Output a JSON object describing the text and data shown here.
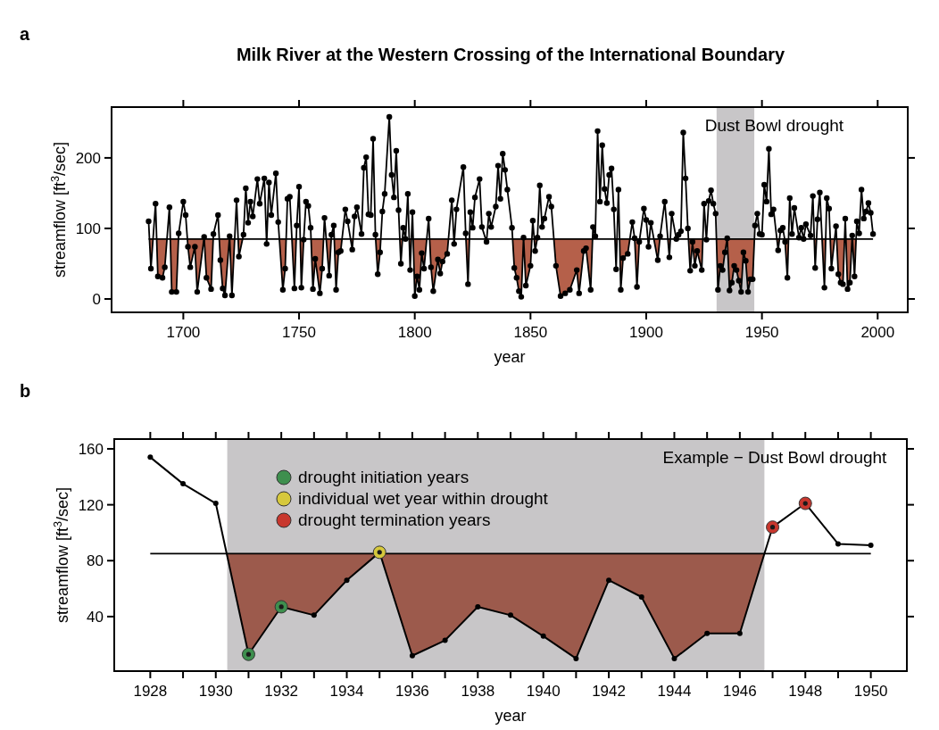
{
  "chart_data": [
    {
      "type": "line",
      "title": "Milk River at the Western Crossing of the International Boundary",
      "xlabel": "year",
      "ylabel": "streamflow [ft$^{3}$/sec]",
      "annotations": [
        "a"
      ],
      "xlim": [
        1669,
        2013
      ],
      "xticks": [
        1700,
        1750,
        1800,
        1850,
        1900,
        1950,
        2000
      ],
      "ylim": [
        -19,
        272
      ],
      "yticks": [
        0,
        100,
        200
      ],
      "grid": false,
      "legend": false,
      "ref_lines": [
        {
          "axis": "y",
          "value": 85,
          "color": "#000000"
        }
      ],
      "bands": [
        {
          "axis": "x",
          "from": 1930.4,
          "to": 1946.7,
          "label": "Dust Bowl drought",
          "color": "#c8c6c8"
        }
      ],
      "series": [
        {
          "type": "area",
          "marker": "circle",
          "color": "#b5604a",
          "x": [
            1685,
            1686,
            1688,
            1689,
            1691,
            1692,
            1694,
            1695,
            1697,
            1698,
            1700,
            1701,
            1702,
            1703,
            1705,
            1706,
            1709,
            1710,
            1712,
            1713,
            1715,
            1716,
            1717,
            1718,
            1720,
            1721,
            1723,
            1724,
            1726,
            1727,
            1728,
            1729,
            1730,
            1732,
            1733,
            1735,
            1736,
            1737,
            1738,
            1740,
            1741,
            1743,
            1744,
            1745,
            1746,
            1748,
            1749,
            1750,
            1751,
            1752,
            1753,
            1754,
            1755,
            1756,
            1757,
            1759,
            1760,
            1761,
            1763,
            1764,
            1765,
            1766,
            1767,
            1768,
            1770,
            1771,
            1773,
            1774,
            1775,
            1777,
            1778,
            1779,
            1780,
            1781,
            1782,
            1783,
            1784,
            1785,
            1786,
            1787,
            1789,
            1790,
            1791,
            1792,
            1793,
            1794,
            1795,
            1796,
            1797,
            1798,
            1799,
            1800,
            1801,
            1802,
            1803,
            1804,
            1806,
            1807,
            1808,
            1810,
            1811,
            1812,
            1814,
            1816,
            1817,
            1818,
            1821,
            1822,
            1823,
            1824,
            1825,
            1826,
            1828,
            1829,
            1831,
            1832,
            1833,
            1835,
            1836,
            1837,
            1838,
            1839,
            1840,
            1842,
            1843,
            1844,
            1845,
            1846,
            1847,
            1848,
            1850,
            1851,
            1852,
            1853,
            1854,
            1855,
            1856,
            1858,
            1859,
            1861,
            1863,
            1865,
            1867,
            1870,
            1871,
            1873,
            1874,
            1876,
            1877,
            1878,
            1879,
            1880,
            1881,
            1882,
            1883,
            1884,
            1885,
            1886,
            1887,
            1888,
            1889,
            1890,
            1892,
            1894,
            1895,
            1896,
            1897,
            1899,
            1900,
            1901,
            1902,
            1905,
            1906,
            1908,
            1910,
            1911,
            1913,
            1914,
            1915,
            1916,
            1917,
            1918,
            1919,
            1920,
            1921,
            1922,
            1924,
            1925,
            1926,
            1927,
            1928,
            1929,
            1930,
            1931,
            1932,
            1933,
            1934,
            1935,
            1936,
            1937,
            1938,
            1939,
            1940,
            1941,
            1942,
            1943,
            1944,
            1945,
            1946,
            1947,
            1948,
            1949,
            1950,
            1951,
            1952,
            1953,
            1954,
            1955,
            1957,
            1958,
            1959,
            1960,
            1961,
            1962,
            1963,
            1964,
            1966,
            1967,
            1968,
            1969,
            1971,
            1972,
            1973,
            1974,
            1975,
            1977,
            1978,
            1979,
            1980,
            1982,
            1983,
            1984,
            1985,
            1986,
            1987,
            1988,
            1989,
            1990,
            1991,
            1992,
            1993,
            1994,
            1995,
            1996,
            1997,
            1998
          ],
          "values": [
            110,
            43,
            135,
            32,
            30,
            45,
            130,
            10,
            10,
            93,
            138,
            119,
            74,
            45,
            74,
            10,
            88,
            30,
            14,
            92,
            119,
            55,
            15,
            5,
            89,
            5,
            140,
            60,
            91,
            157,
            108,
            138,
            117,
            170,
            135,
            171,
            78,
            165,
            119,
            178,
            109,
            13,
            43,
            142,
            145,
            15,
            104,
            159,
            16,
            84,
            138,
            132,
            101,
            14,
            57,
            8,
            43,
            115,
            33,
            91,
            104,
            13,
            66,
            68,
            127,
            110,
            70,
            117,
            130,
            92,
            186,
            201,
            120,
            119,
            227,
            91,
            35,
            66,
            124,
            149,
            258,
            176,
            144,
            210,
            126,
            50,
            101,
            85,
            149,
            41,
            123,
            4,
            32,
            13,
            65,
            43,
            114,
            45,
            11,
            56,
            36,
            53,
            64,
            140,
            78,
            127,
            187,
            93,
            21,
            123,
            101,
            144,
            170,
            102,
            81,
            121,
            102,
            131,
            189,
            142,
            206,
            183,
            155,
            101,
            44,
            30,
            11,
            3,
            87,
            19,
            47,
            111,
            68,
            87,
            161,
            102,
            114,
            145,
            131,
            47,
            4,
            8,
            13,
            41,
            8,
            68,
            72,
            13,
            102,
            89,
            238,
            138,
            218,
            156,
            136,
            176,
            185,
            127,
            42,
            155,
            13,
            58,
            64,
            109,
            86,
            17,
            81,
            128,
            112,
            74,
            108,
            55,
            89,
            138,
            59,
            121,
            85,
            91,
            96,
            236,
            171,
            100,
            40,
            81,
            47,
            68,
            41,
            135,
            84,
            139,
            154,
            135,
            121,
            13,
            47,
            41,
            66,
            86,
            12,
            23,
            47,
            41,
            26,
            10,
            66,
            54,
            10,
            28,
            28,
            104,
            121,
            92,
            91,
            162,
            138,
            213,
            120,
            127,
            69,
            97,
            101,
            81,
            30,
            143,
            92,
            129,
            87,
            101,
            85,
            106,
            90,
            146,
            44,
            113,
            151,
            16,
            143,
            128,
            43,
            103,
            35,
            23,
            21,
            114,
            14,
            23,
            90,
            32,
            110,
            93,
            155,
            114,
            124,
            136,
            122,
            92
          ]
        }
      ]
    },
    {
      "type": "line",
      "xlabel": "year",
      "ylabel": "streamflow [ft$^{3}$/sec]",
      "annotations": [
        "b"
      ],
      "xlim": [
        1926.9,
        1951.1
      ],
      "xticks": [
        1928,
        {
          "value": 1929,
          "label": null
        },
        1930,
        {
          "value": 1931,
          "label": null
        },
        1932,
        {
          "value": 1933,
          "label": null
        },
        1934,
        {
          "value": 1935,
          "label": null
        },
        1936,
        {
          "value": 1937,
          "label": null
        },
        1938,
        {
          "value": 1939,
          "label": null
        },
        1940,
        {
          "value": 1941,
          "label": null
        },
        1942,
        {
          "value": 1943,
          "label": null
        },
        1944,
        {
          "value": 1945,
          "label": null
        },
        1946,
        {
          "value": 1947,
          "label": null
        },
        1948,
        {
          "value": 1949,
          "label": null
        },
        1950
      ],
      "ylim": [
        1,
        167
      ],
      "yticks": [
        40,
        80,
        120,
        160
      ],
      "grid": false,
      "legend": "top left",
      "ref_lines": [
        {
          "axis": "y",
          "value": 85,
          "color": "#000000"
        }
      ],
      "bands": [
        {
          "axis": "x",
          "from": 1930.35,
          "to": 1946.75,
          "label": "Example − Dust Bowl drought",
          "color": "#c8c6c8"
        }
      ],
      "series": [
        {
          "type": "area",
          "marker": "circle",
          "color": "#9c5a4c",
          "x": [
            1928,
            1929,
            1930,
            1931,
            1932,
            1933,
            1934,
            1935,
            1936,
            1937,
            1938,
            1939,
            1940,
            1941,
            1942,
            1943,
            1944,
            1945,
            1946,
            1947,
            1948,
            1949,
            1950
          ],
          "values": [
            154,
            135,
            121,
            13,
            47,
            41,
            66,
            86,
            12,
            23,
            47,
            41,
            26,
            10,
            66,
            54,
            10,
            28,
            28,
            104,
            121,
            92,
            91
          ]
        },
        {
          "type": "scatter",
          "name": "drought initiation years",
          "color": "#3e8f4e",
          "x": [
            1931,
            1932
          ],
          "values": [
            13,
            47
          ]
        },
        {
          "type": "scatter",
          "name": "individual wet year within drought",
          "color": "#d6c83c",
          "x": [
            1935
          ],
          "values": [
            86
          ]
        },
        {
          "type": "scatter",
          "name": "drought termination years",
          "color": "#c8372e",
          "x": [
            1947,
            1948
          ],
          "values": [
            104,
            121
          ]
        }
      ]
    }
  ]
}
